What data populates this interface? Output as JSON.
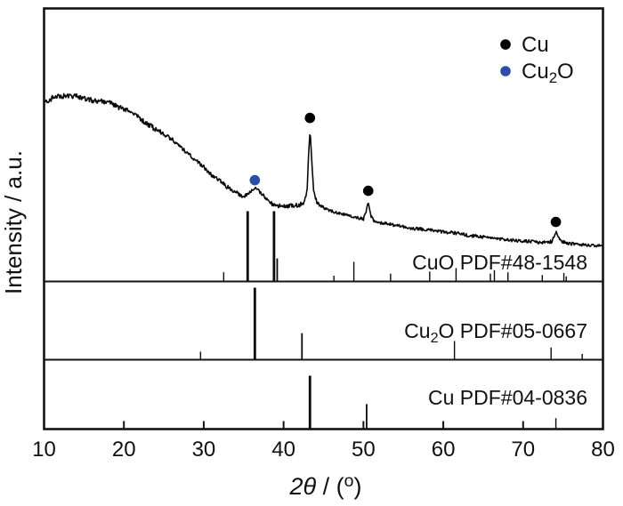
{
  "chart_data": {
    "type": "line",
    "description": "XRD pattern of Cu/Cu2O sample with reference stick patterns",
    "xlabel": "2θ / (°)",
    "xlabel_parts": {
      "italic": "2θ",
      "mid": " / (",
      "sup": "o",
      "close": ")"
    },
    "ylabel": "Intensity / a.u.",
    "xlim": [
      10,
      80
    ],
    "x_ticks": [
      "10",
      "20",
      "30",
      "40",
      "50",
      "60",
      "70",
      "80"
    ],
    "grid": "off",
    "legend_position": "top-right inside",
    "colors": {
      "trace": "#0a0a0a",
      "axis": "#141414",
      "cu_marker": "#000000",
      "cu2o_marker": "#2b4fa6"
    },
    "legend": [
      {
        "label": "Cu",
        "color": "#000000"
      },
      {
        "label": "Cu2O",
        "pre": "Cu",
        "sub": "2",
        "post": "O",
        "color": "#2b4fa6"
      }
    ],
    "experimental_series": {
      "name": "experimental trace",
      "x_unit": "2theta degrees",
      "y_unit": "relative intensity 0-100 (a.u.)",
      "noise_amplitude": {
        "left": 3.0,
        "mid": 2.4,
        "right": 1.8
      },
      "anchors": [
        [
          10,
          65.5
        ],
        [
          11,
          67.1
        ],
        [
          12,
          67.8
        ],
        [
          13,
          68.1
        ],
        [
          14,
          67.8
        ],
        [
          15,
          67.1
        ],
        [
          16,
          66.4
        ],
        [
          17,
          66.1
        ],
        [
          18,
          65.5
        ],
        [
          19,
          64.2
        ],
        [
          20,
          63.2
        ],
        [
          21,
          61.6
        ],
        [
          22,
          59.6
        ],
        [
          23,
          57.7
        ],
        [
          24,
          55.7
        ],
        [
          25,
          54.1
        ],
        [
          26,
          52.1
        ],
        [
          27,
          49.5
        ],
        [
          28,
          46.9
        ],
        [
          29,
          44.3
        ],
        [
          30,
          42.0
        ],
        [
          31,
          39.1
        ],
        [
          32,
          36.8
        ],
        [
          33,
          34.5
        ],
        [
          34,
          32.6
        ],
        [
          34.8,
          31.3
        ],
        [
          35.4,
          31.6
        ],
        [
          36.0,
          33.2
        ],
        [
          36.45,
          34.2
        ],
        [
          37.0,
          32.9
        ],
        [
          37.7,
          30.6
        ],
        [
          38.4,
          28.7
        ],
        [
          39.2,
          27.7
        ],
        [
          40,
          27.4
        ],
        [
          41,
          27.7
        ],
        [
          42,
          28.0
        ],
        [
          42.6,
          29.0
        ],
        [
          42.95,
          33.6
        ],
        [
          43.15,
          47.6
        ],
        [
          43.32,
          55.7
        ],
        [
          43.5,
          45.9
        ],
        [
          43.75,
          33.2
        ],
        [
          44.2,
          28.7
        ],
        [
          45,
          27.0
        ],
        [
          46,
          25.7
        ],
        [
          47,
          24.8
        ],
        [
          48,
          24.1
        ],
        [
          49,
          23.5
        ],
        [
          50,
          22.8
        ],
        [
          50.35,
          25.7
        ],
        [
          50.6,
          29.3
        ],
        [
          50.9,
          24.4
        ],
        [
          51.3,
          22.1
        ],
        [
          52,
          21.5
        ],
        [
          53,
          21.2
        ],
        [
          54,
          20.5
        ],
        [
          55,
          20.2
        ],
        [
          56,
          19.5
        ],
        [
          57,
          19.2
        ],
        [
          58,
          18.9
        ],
        [
          59,
          18.6
        ],
        [
          60,
          18.2
        ],
        [
          61,
          17.9
        ],
        [
          62,
          17.6
        ],
        [
          63,
          16.9
        ],
        [
          64,
          16.6
        ],
        [
          65,
          16.3
        ],
        [
          66,
          16.0
        ],
        [
          67,
          15.6
        ],
        [
          68,
          15.3
        ],
        [
          69,
          15.0
        ],
        [
          70,
          14.7
        ],
        [
          71,
          14.7
        ],
        [
          72,
          14.3
        ],
        [
          73,
          14.3
        ],
        [
          73.6,
          14.7
        ],
        [
          74.0,
          17.3
        ],
        [
          74.15,
          18.2
        ],
        [
          74.4,
          16.3
        ],
        [
          74.8,
          14.7
        ],
        [
          75.5,
          14.0
        ],
        [
          76.5,
          13.7
        ],
        [
          78,
          13.4
        ],
        [
          80,
          13.0
        ]
      ]
    },
    "markers": {
      "cu": {
        "symbol": "filled-circle",
        "color": "#000000",
        "points": [
          [
            43.3,
            59.9
          ],
          [
            50.6,
            33.2
          ],
          [
            74.1,
            21.8
          ]
        ]
      },
      "cu2o": {
        "symbol": "filled-circle",
        "color": "#2b4fa6",
        "points": [
          [
            36.4,
            37.1
          ]
        ]
      }
    },
    "reference_patterns": [
      {
        "label": "CuO PDF#48-1548",
        "peaks": [
          [
            32.5,
            12
          ],
          [
            35.5,
            100
          ],
          [
            38.8,
            100
          ],
          [
            39.2,
            32
          ],
          [
            46.3,
            7
          ],
          [
            48.8,
            27
          ],
          [
            53.4,
            10
          ],
          [
            58.3,
            13
          ],
          [
            61.6,
            18
          ],
          [
            65.9,
            10
          ],
          [
            66.4,
            15
          ],
          [
            68.1,
            12
          ],
          [
            72.4,
            8
          ],
          [
            75.1,
            11
          ],
          [
            75.4,
            6
          ]
        ]
      },
      {
        "label": "Cu2O PDF#05-0667",
        "label_pre": "Cu",
        "label_sub": "2",
        "label_post": "O PDF#05-0667",
        "peaks": [
          [
            29.6,
            10
          ],
          [
            36.4,
            100
          ],
          [
            42.3,
            36
          ],
          [
            61.4,
            25
          ],
          [
            73.5,
            16
          ],
          [
            77.4,
            7
          ]
        ]
      },
      {
        "label": "Cu PDF#04-0836",
        "peaks": [
          [
            43.3,
            100
          ],
          [
            50.4,
            46
          ],
          [
            74.1,
            19
          ]
        ]
      }
    ]
  }
}
